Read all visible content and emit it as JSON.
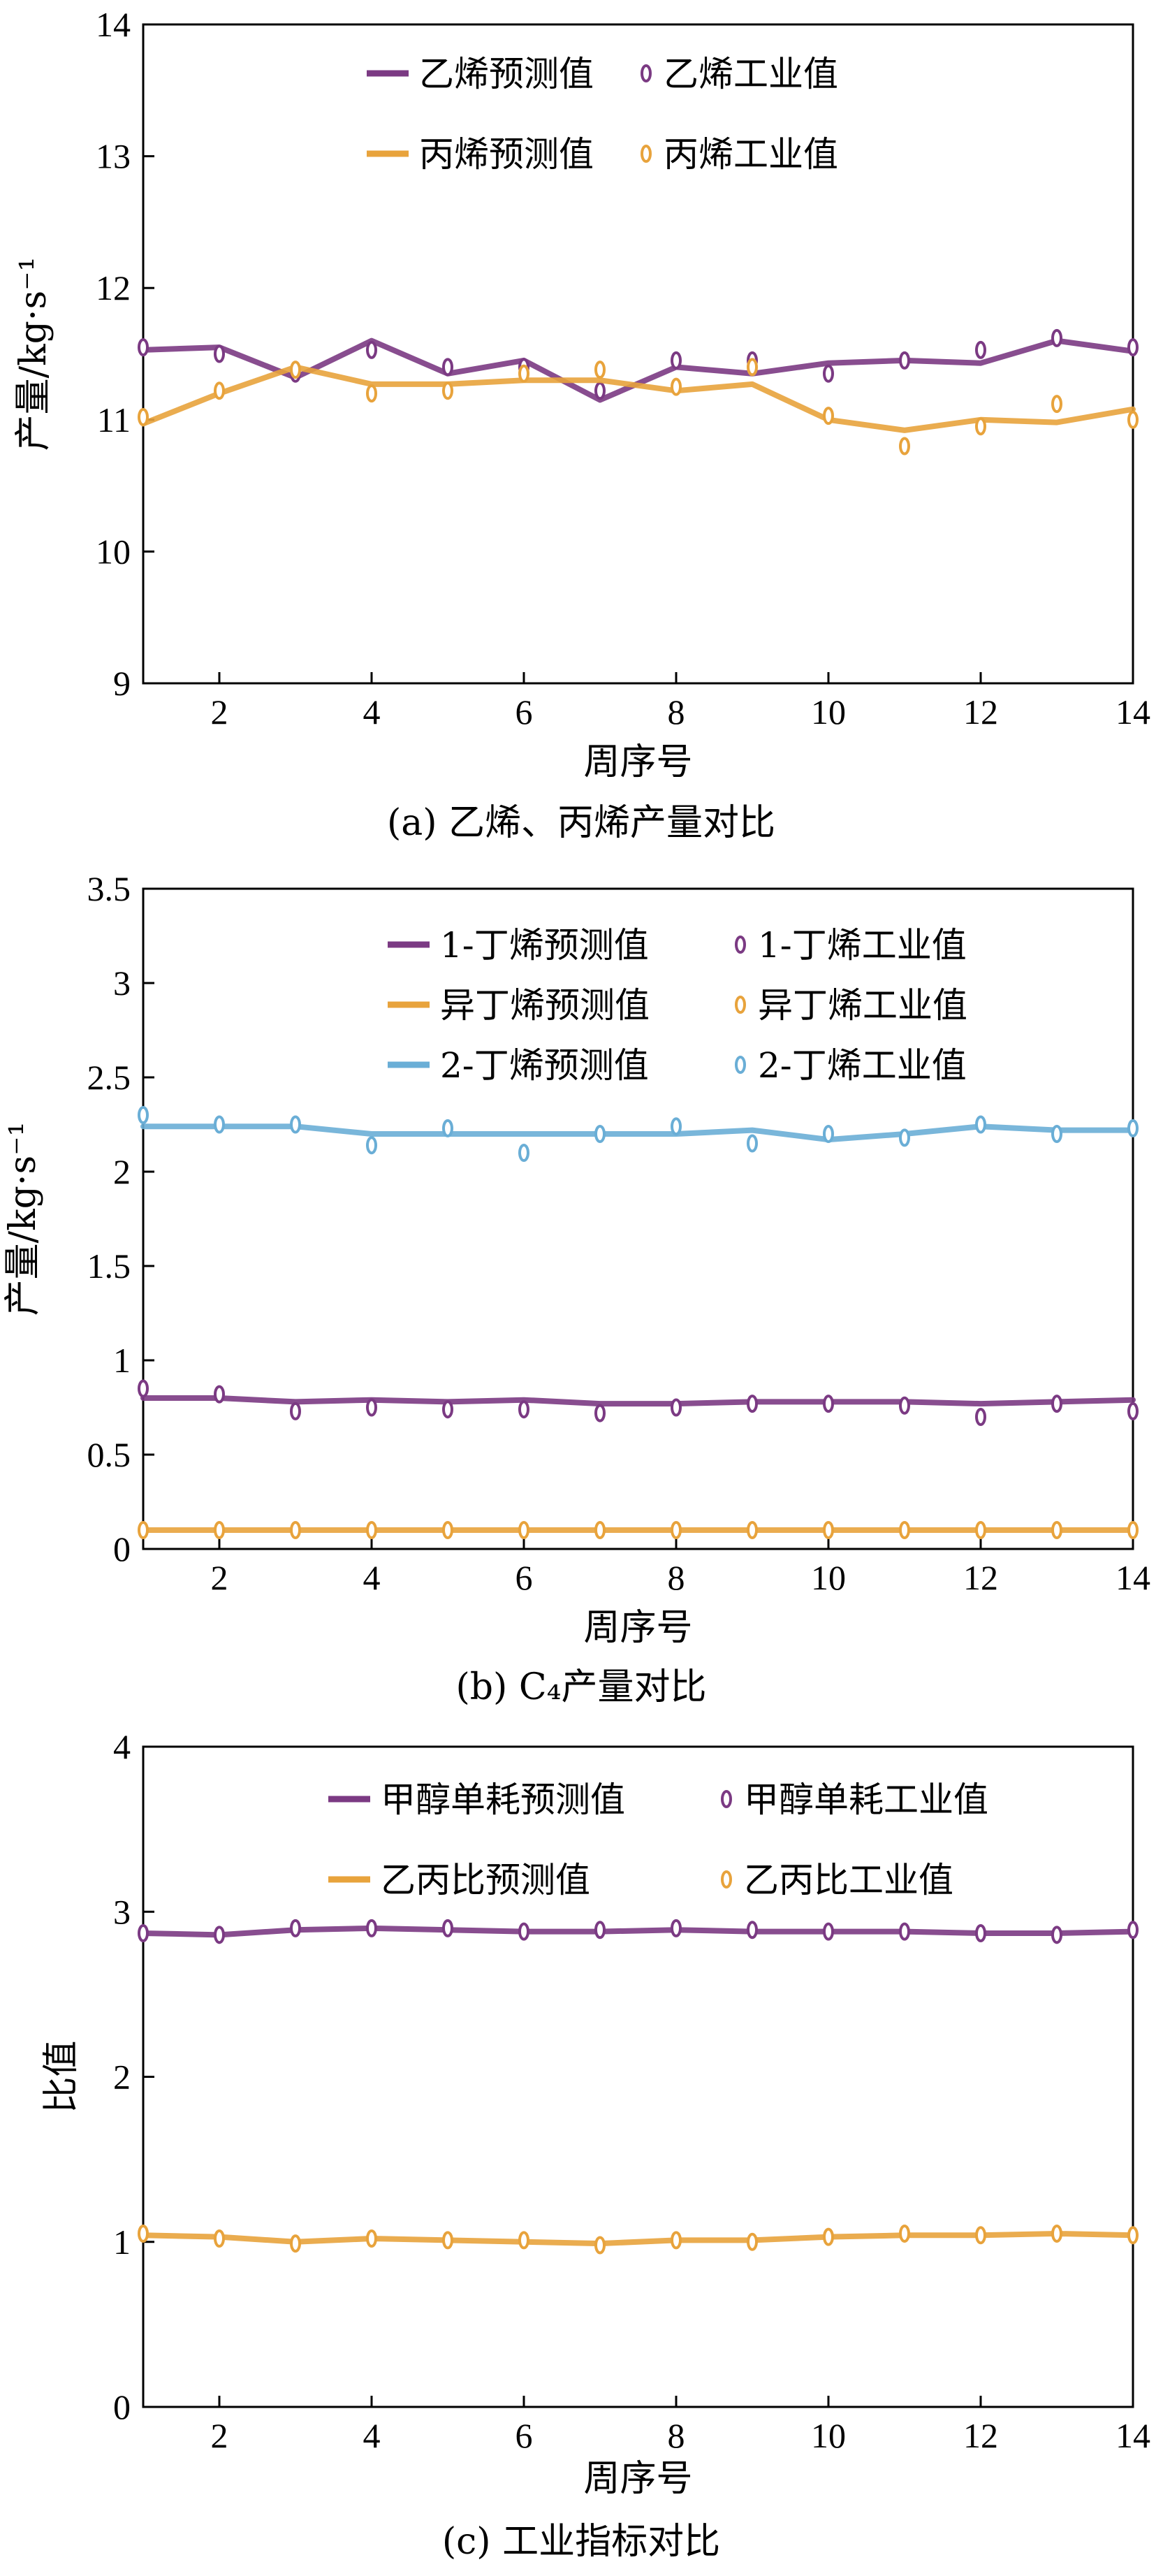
{
  "chart_data": [
    {
      "type": "line",
      "caption": "(a) 乙烯、丙烯产量对比",
      "xlabel": "周序号",
      "ylabel": "产量/kg·s⁻¹",
      "xlim": [
        1,
        14
      ],
      "ylim": [
        9,
        14
      ],
      "xticks": [
        2,
        4,
        6,
        8,
        10,
        12,
        14
      ],
      "yticks": [
        9,
        10,
        11,
        12,
        13,
        14
      ],
      "grid": false,
      "legend_position": "top-center",
      "x": [
        1,
        2,
        3,
        4,
        5,
        6,
        7,
        8,
        9,
        10,
        11,
        12,
        13,
        14
      ],
      "series": [
        {
          "name": "乙烯预测值",
          "kind": "line",
          "color": "#7b3a83",
          "values": [
            11.53,
            11.55,
            11.32,
            11.6,
            11.35,
            11.45,
            11.15,
            11.4,
            11.35,
            11.43,
            11.45,
            11.43,
            11.6,
            11.52
          ]
        },
        {
          "name": "乙烯工业值",
          "kind": "marker",
          "color": "#7b3a83",
          "values": [
            11.55,
            11.5,
            11.35,
            11.53,
            11.4,
            11.4,
            11.22,
            11.45,
            11.45,
            11.35,
            11.45,
            11.53,
            11.62,
            11.55
          ]
        },
        {
          "name": "丙烯预测值",
          "kind": "line",
          "color": "#e8a33c",
          "values": [
            10.97,
            11.2,
            11.4,
            11.27,
            11.27,
            11.3,
            11.3,
            11.22,
            11.27,
            11.0,
            10.92,
            11.0,
            10.98,
            11.08
          ]
        },
        {
          "name": "丙烯工业值",
          "kind": "marker",
          "color": "#e8a33c",
          "values": [
            11.02,
            11.22,
            11.38,
            11.2,
            11.22,
            11.35,
            11.38,
            11.25,
            11.4,
            11.03,
            10.8,
            10.95,
            11.12,
            11.0
          ]
        }
      ]
    },
    {
      "type": "line",
      "caption": "(b) C₄产量对比",
      "xlabel": "周序号",
      "ylabel": "产量/kg·s⁻¹",
      "xlim": [
        1,
        14
      ],
      "ylim": [
        0,
        3.5
      ],
      "xticks": [
        2,
        4,
        6,
        8,
        10,
        12,
        14
      ],
      "yticks": [
        0,
        0.5,
        1,
        1.5,
        2,
        2.5,
        3,
        3.5
      ],
      "grid": false,
      "legend_position": "top-center",
      "x": [
        1,
        2,
        3,
        4,
        5,
        6,
        7,
        8,
        9,
        10,
        11,
        12,
        13,
        14
      ],
      "series": [
        {
          "name": "1-丁烯预测值",
          "kind": "line",
          "color": "#7b3a83",
          "values": [
            0.8,
            0.8,
            0.78,
            0.79,
            0.78,
            0.79,
            0.77,
            0.77,
            0.78,
            0.78,
            0.78,
            0.77,
            0.78,
            0.79
          ]
        },
        {
          "name": "1-丁烯工业值",
          "kind": "marker",
          "color": "#7b3a83",
          "values": [
            0.85,
            0.82,
            0.73,
            0.75,
            0.74,
            0.74,
            0.72,
            0.75,
            0.77,
            0.77,
            0.76,
            0.7,
            0.77,
            0.73
          ]
        },
        {
          "name": "异丁烯预测值",
          "kind": "line",
          "color": "#e8a33c",
          "values": [
            0.1,
            0.1,
            0.1,
            0.1,
            0.1,
            0.1,
            0.1,
            0.1,
            0.1,
            0.1,
            0.1,
            0.1,
            0.1,
            0.1
          ]
        },
        {
          "name": "异丁烯工业值",
          "kind": "marker",
          "color": "#e8a33c",
          "values": [
            0.1,
            0.1,
            0.1,
            0.1,
            0.1,
            0.1,
            0.1,
            0.1,
            0.1,
            0.1,
            0.1,
            0.1,
            0.1,
            0.1
          ]
        },
        {
          "name": "2-丁烯预测值",
          "kind": "line",
          "color": "#6aaed6",
          "values": [
            2.24,
            2.24,
            2.24,
            2.2,
            2.2,
            2.2,
            2.2,
            2.2,
            2.22,
            2.17,
            2.2,
            2.24,
            2.22,
            2.22
          ]
        },
        {
          "name": "2-丁烯工业值",
          "kind": "marker",
          "color": "#6aaed6",
          "values": [
            2.3,
            2.25,
            2.25,
            2.14,
            2.23,
            2.1,
            2.2,
            2.24,
            2.15,
            2.2,
            2.18,
            2.25,
            2.2,
            2.23
          ]
        }
      ]
    },
    {
      "type": "line",
      "caption": "(c) 工业指标对比",
      "xlabel": "周序号",
      "ylabel": "比值",
      "xlim": [
        1,
        14
      ],
      "ylim": [
        0,
        4
      ],
      "xticks": [
        2,
        4,
        6,
        8,
        10,
        12,
        14
      ],
      "yticks": [
        0,
        1,
        2,
        3,
        4
      ],
      "grid": false,
      "legend_position": "top-center",
      "x": [
        1,
        2,
        3,
        4,
        5,
        6,
        7,
        8,
        9,
        10,
        11,
        12,
        13,
        14
      ],
      "series": [
        {
          "name": "甲醇单耗预测值",
          "kind": "line",
          "color": "#7b3a83",
          "values": [
            2.87,
            2.86,
            2.89,
            2.9,
            2.89,
            2.88,
            2.88,
            2.89,
            2.88,
            2.88,
            2.88,
            2.87,
            2.87,
            2.88
          ]
        },
        {
          "name": "甲醇单耗工业值",
          "kind": "marker",
          "color": "#7b3a83",
          "values": [
            2.87,
            2.86,
            2.9,
            2.9,
            2.9,
            2.88,
            2.89,
            2.9,
            2.89,
            2.88,
            2.88,
            2.87,
            2.86,
            2.89
          ]
        },
        {
          "name": "乙丙比预测值",
          "kind": "line",
          "color": "#e8a33c",
          "values": [
            1.04,
            1.03,
            1.0,
            1.02,
            1.01,
            1.0,
            0.99,
            1.01,
            1.01,
            1.03,
            1.04,
            1.04,
            1.05,
            1.04
          ]
        },
        {
          "name": "乙丙比工业值",
          "kind": "marker",
          "color": "#e8a33c",
          "values": [
            1.05,
            1.02,
            0.99,
            1.02,
            1.01,
            1.01,
            0.98,
            1.01,
            1.0,
            1.03,
            1.05,
            1.04,
            1.05,
            1.04
          ]
        }
      ]
    }
  ]
}
